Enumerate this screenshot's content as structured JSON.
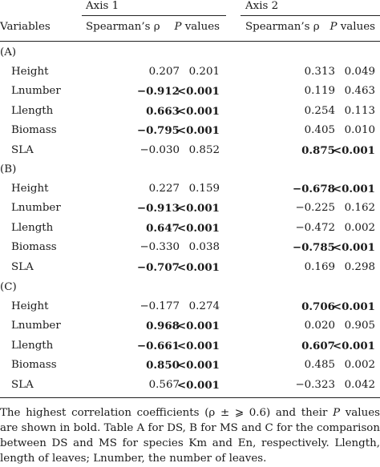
{
  "headers": {
    "axis1": "Axis 1",
    "axis2": "Axis 2",
    "variables": "Variables",
    "spearman1": "Spearman’s ρ",
    "p_italic1": "P",
    "p_rest1": " values",
    "spearman2": "Spearman’s ρ",
    "p_italic2": "P",
    "p_rest2": " values"
  },
  "sections": [
    {
      "label": "(A)",
      "rows": [
        {
          "var": "Height",
          "r1": "0.207",
          "p1": "0.201",
          "r2": "0.313",
          "p2": "0.049",
          "b": [
            false,
            false,
            false,
            false
          ]
        },
        {
          "var": "Lnumber",
          "r1": "−0.912",
          "p1": "<0.001",
          "r2": "0.119",
          "p2": "0.463",
          "b": [
            true,
            true,
            false,
            false
          ]
        },
        {
          "var": "Llength",
          "r1": "0.663",
          "p1": "<0.001",
          "r2": "0.254",
          "p2": "0.113",
          "b": [
            true,
            true,
            false,
            false
          ]
        },
        {
          "var": "Biomass",
          "r1": "−0.795",
          "p1": "<0.001",
          "r2": "0.405",
          "p2": "0.010",
          "b": [
            true,
            true,
            false,
            false
          ]
        },
        {
          "var": "SLA",
          "r1": "−0.030",
          "p1": "0.852",
          "r2": "0.875",
          "p2": "<0.001",
          "b": [
            false,
            false,
            true,
            true
          ]
        }
      ]
    },
    {
      "label": "(B)",
      "rows": [
        {
          "var": "Height",
          "r1": "0.227",
          "p1": "0.159",
          "r2": "−0.678",
          "p2": "<0.001",
          "b": [
            false,
            false,
            true,
            true
          ]
        },
        {
          "var": "Lnumber",
          "r1": "−0.913",
          "p1": "<0.001",
          "r2": "−0.225",
          "p2": "0.162",
          "b": [
            true,
            true,
            false,
            false
          ]
        },
        {
          "var": "Llength",
          "r1": "0.647",
          "p1": "<0.001",
          "r2": "−0.472",
          "p2": "0.002",
          "b": [
            true,
            true,
            false,
            false
          ]
        },
        {
          "var": "Biomass",
          "r1": "−0.330",
          "p1": "0.038",
          "r2": "−0.785",
          "p2": "<0.001",
          "b": [
            false,
            false,
            true,
            true
          ]
        },
        {
          "var": "SLA",
          "r1": "−0.707",
          "p1": "<0.001",
          "r2": "0.169",
          "p2": "0.298",
          "b": [
            true,
            true,
            false,
            false
          ]
        }
      ]
    },
    {
      "label": "(C)",
      "rows": [
        {
          "var": "Height",
          "r1": "−0.177",
          "p1": "0.274",
          "r2": "0.706",
          "p2": "<0.001",
          "b": [
            false,
            false,
            true,
            true
          ]
        },
        {
          "var": "Lnumber",
          "r1": "0.968",
          "p1": "<0.001",
          "r2": "0.020",
          "p2": "0.905",
          "b": [
            true,
            true,
            false,
            false
          ]
        },
        {
          "var": "Llength",
          "r1": "−0.661",
          "p1": "<0.001",
          "r2": "0.607",
          "p2": "<0.001",
          "b": [
            true,
            true,
            true,
            true
          ]
        },
        {
          "var": "Biomass",
          "r1": "0.850",
          "p1": "<0.001",
          "r2": "0.485",
          "p2": "0.002",
          "b": [
            true,
            true,
            false,
            false
          ]
        },
        {
          "var": "SLA",
          "r1": "0.567",
          "p1": "<0.001",
          "r2": "−0.323",
          "p2": "0.042",
          "b": [
            false,
            true,
            false,
            false
          ]
        }
      ]
    }
  ],
  "footnote": {
    "part1": "The highest correlation coefficients (ρ ± ⩾ 0.6) and their ",
    "p_italic": "P",
    "part2": " values are shown in bold. Table A for DS, B for MS and C for the comparison between DS and MS for species Km and En, respectively. Llength, length of leaves; Lnumber, the number of leaves."
  }
}
